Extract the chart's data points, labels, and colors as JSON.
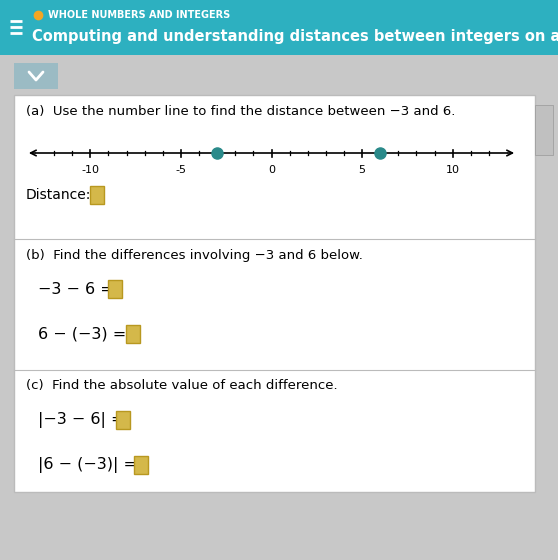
{
  "header_bg": "#2db0c0",
  "header_text_color": "#ffffff",
  "header_label": "WHOLE NUMBERS AND INTEGERS",
  "header_subtitle": "Computing and understanding distances between integers on a...",
  "dot_color": "#2a8a8a",
  "header_dot_color": "#f5a623",
  "section_bg": "#ffffff",
  "section_border": "#bbbbbb",
  "outer_bg": "#c8c8c8",
  "number_line_min": -13,
  "number_line_max": 13,
  "number_line_ticks": [
    -10,
    -5,
    0,
    5,
    10
  ],
  "point1": -3,
  "point2": 6,
  "answer_box_color": "#d4b84a",
  "answer_box_border": "#b89820",
  "section_a_title": "(a)  Use the number line to find the distance between −3 and 6.",
  "section_a_distance_label": "Distance:",
  "section_b_title": "(b)  Find the differences involving −3 and 6 below.",
  "section_b_eq1": "−3 − 6 =",
  "section_b_eq2": "6 − (−3) =",
  "section_c_title": "(c)  Find the absolute value of each difference.",
  "section_c_eq1": "|−3 − 6| =",
  "section_c_eq2": "|6 − (−3)| =",
  "chevron_bg": "#9bbbc4",
  "chevron_color": "#3a6a7a",
  "card_right_box_color": "#d0d0d0"
}
